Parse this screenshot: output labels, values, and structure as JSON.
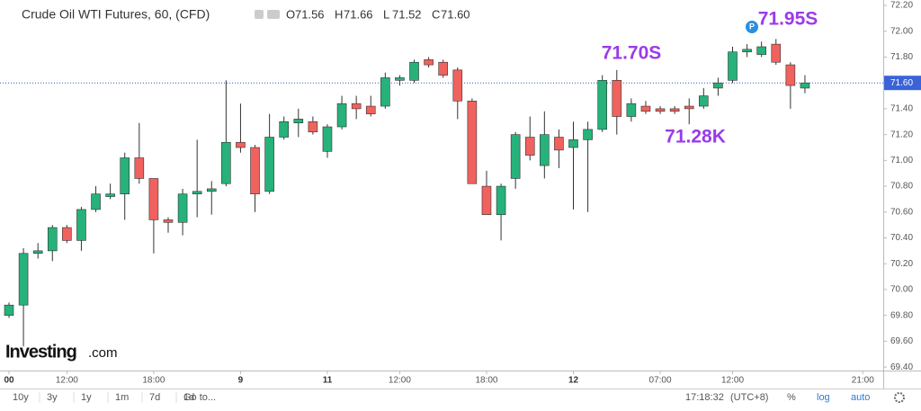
{
  "chart_data": {
    "type": "candlestick",
    "title": "Crude Oil WTI Futures, 60, (CFD)",
    "quote": [
      {
        "key": "O",
        "value": "71.56"
      },
      {
        "key": "H",
        "value": "71.66"
      },
      {
        "key": "L",
        "value": "71.52"
      },
      {
        "key": "C",
        "value": "71.60"
      }
    ],
    "categories": [
      "00",
      null,
      null,
      null,
      "12:00",
      null,
      null,
      null,
      null,
      null,
      "18:00",
      null,
      null,
      null,
      null,
      null,
      "9",
      null,
      null,
      null,
      null,
      null,
      "11",
      null,
      null,
      null,
      null,
      "12:00",
      null,
      null,
      null,
      null,
      null,
      "18:00",
      null,
      null,
      null,
      null,
      null,
      "12",
      null,
      null,
      null,
      null,
      null,
      "07:00",
      null,
      null,
      null,
      null,
      "12:00",
      null,
      null,
      null,
      null,
      null,
      null,
      null,
      null,
      "21:00"
    ],
    "open": [
      69.8,
      69.88,
      70.28,
      70.3,
      70.48,
      70.38,
      70.62,
      70.72,
      70.74,
      71.02,
      70.86,
      70.54,
      70.52,
      70.74,
      70.76,
      70.82,
      71.14,
      71.1,
      70.76,
      71.18,
      71.29,
      71.3,
      71.07,
      71.26,
      71.44,
      71.42,
      71.42,
      71.62,
      71.62,
      71.78,
      71.76,
      71.7,
      71.46,
      70.8,
      70.58,
      70.86,
      71.18,
      70.96,
      71.18,
      71.1,
      71.16,
      71.24,
      71.62,
      71.34,
      71.42,
      71.4,
      71.4,
      71.42,
      71.42,
      71.56,
      71.62,
      71.84,
      71.82,
      71.9,
      71.74,
      71.56,
      null,
      null,
      null,
      null
    ],
    "high": [
      69.9,
      70.32,
      70.36,
      70.5,
      70.5,
      70.64,
      70.8,
      70.82,
      71.06,
      71.29,
      70.86,
      70.56,
      70.78,
      71.16,
      70.84,
      71.62,
      71.44,
      71.12,
      71.36,
      71.34,
      71.4,
      71.34,
      71.28,
      71.5,
      71.5,
      71.5,
      71.68,
      71.66,
      71.78,
      71.8,
      71.78,
      71.72,
      71.48,
      70.92,
      70.82,
      71.22,
      71.34,
      71.38,
      71.24,
      71.3,
      71.3,
      71.66,
      71.7,
      71.48,
      71.46,
      71.42,
      71.42,
      71.48,
      71.56,
      71.64,
      71.88,
      71.9,
      71.92,
      71.94,
      71.76,
      71.66,
      null,
      null,
      null,
      null
    ],
    "low": [
      69.78,
      69.56,
      70.24,
      70.22,
      70.36,
      70.3,
      70.6,
      70.7,
      70.54,
      70.82,
      70.28,
      70.44,
      70.42,
      70.56,
      70.58,
      70.8,
      71.06,
      70.6,
      70.74,
      71.16,
      71.18,
      71.2,
      71.02,
      71.24,
      71.32,
      71.34,
      71.4,
      71.58,
      71.6,
      71.72,
      71.64,
      71.32,
      70.82,
      70.58,
      70.38,
      70.78,
      71.0,
      70.86,
      70.94,
      70.62,
      70.6,
      71.22,
      71.2,
      71.3,
      71.36,
      71.36,
      71.36,
      71.28,
      71.4,
      71.5,
      71.6,
      71.8,
      71.8,
      71.74,
      71.4,
      71.52,
      null,
      null,
      null,
      null
    ],
    "close": [
      69.88,
      70.28,
      70.3,
      70.48,
      70.38,
      70.62,
      70.74,
      70.74,
      71.02,
      70.86,
      70.54,
      70.52,
      70.74,
      70.76,
      70.78,
      71.14,
      71.1,
      70.74,
      71.18,
      71.3,
      71.32,
      71.22,
      71.26,
      71.44,
      71.4,
      71.36,
      71.64,
      71.64,
      71.76,
      71.74,
      71.66,
      71.46,
      70.82,
      70.58,
      70.8,
      71.2,
      71.04,
      71.2,
      71.08,
      71.16,
      71.24,
      71.62,
      71.34,
      71.44,
      71.38,
      71.38,
      71.38,
      71.4,
      71.5,
      71.6,
      71.84,
      71.86,
      71.88,
      71.76,
      71.58,
      71.6,
      null,
      null,
      null,
      null
    ],
    "up_color": "#26b27a",
    "down_color": "#f0625e",
    "ylim": [
      69.373,
      72.242
    ],
    "yticks": [
      {
        "value": 72.2,
        "label": "72.20"
      },
      {
        "value": 72.0,
        "label": "72.00"
      },
      {
        "value": 71.8,
        "label": "71.80"
      },
      {
        "value": 71.6,
        "label": "71.60"
      },
      {
        "value": 71.4,
        "label": "71.40"
      },
      {
        "value": 71.2,
        "label": "71.20"
      },
      {
        "value": 71.0,
        "label": "71.00"
      },
      {
        "value": 70.8,
        "label": "70.80"
      },
      {
        "value": 70.6,
        "label": "70.60"
      },
      {
        "value": 70.4,
        "label": "70.40"
      },
      {
        "value": 70.2,
        "label": "70.20"
      },
      {
        "value": 70.0,
        "label": "70.00"
      },
      {
        "value": 69.8,
        "label": "69.80"
      },
      {
        "value": 69.6,
        "label": "69.60"
      },
      {
        "value": 69.4,
        "label": "69.40"
      }
    ],
    "current_price": {
      "value": 71.6,
      "label": "71.60"
    },
    "annotations": [
      "71.70S",
      "71.28K",
      "71.95S"
    ],
    "badge": "P",
    "logo": {
      "brand": "Investing",
      "suffix": ".com"
    }
  },
  "toolbar": {
    "ranges": [
      "10y",
      "3y",
      "1y",
      "1m",
      "7d",
      "1d",
      "Go to..."
    ],
    "time": "17:18:32",
    "zone": "(UTC+8)",
    "options": [
      "%",
      "log",
      "auto"
    ]
  }
}
